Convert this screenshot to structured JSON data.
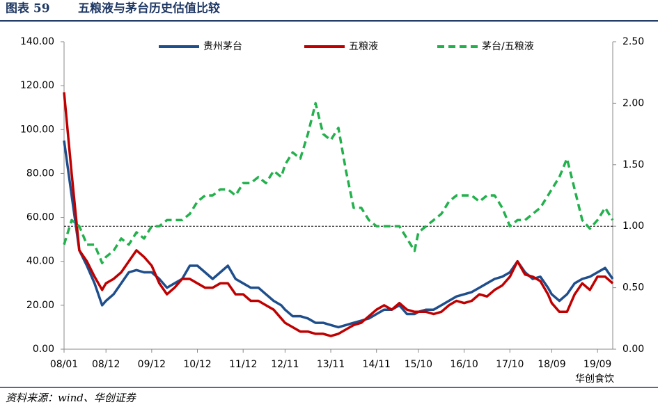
{
  "chart_data": {
    "type": "line",
    "figure_label": "图表 59",
    "title": "五粮液与茅台历史估值比较",
    "source": "资料来源：wind、华创证券",
    "watermark": "华创食饮",
    "x": [
      "08/01",
      "08/03",
      "08/05",
      "08/07",
      "08/09",
      "08/11",
      "08/12",
      "09/02",
      "09/04",
      "09/06",
      "09/08",
      "09/10",
      "09/12",
      "10/02",
      "10/04",
      "10/06",
      "10/08",
      "10/10",
      "10/12",
      "11/02",
      "11/04",
      "11/06",
      "11/08",
      "11/10",
      "11/12",
      "12/02",
      "12/04",
      "12/06",
      "12/08",
      "12/10",
      "12/11",
      "13/01",
      "13/03",
      "13/05",
      "13/07",
      "13/09",
      "13/11",
      "14/01",
      "14/03",
      "14/05",
      "14/07",
      "14/09",
      "14/11",
      "15/01",
      "15/03",
      "15/05",
      "15/07",
      "15/09",
      "15/10",
      "15/12",
      "16/02",
      "16/04",
      "16/06",
      "16/08",
      "16/10",
      "16/12",
      "17/02",
      "17/04",
      "17/06",
      "17/08",
      "17/10",
      "17/12",
      "18/02",
      "18/04",
      "18/06",
      "18/08",
      "18/09",
      "18/11",
      "19/01",
      "19/03",
      "19/05",
      "19/07",
      "19/09",
      "19/11",
      "20/01"
    ],
    "series": [
      {
        "name": "贵州茅台",
        "color": "#1f4e8c",
        "dash": false,
        "values": [
          95,
          70,
          45,
          38,
          30,
          20,
          22,
          25,
          30,
          35,
          36,
          35,
          35,
          32,
          28,
          30,
          32,
          38,
          38,
          35,
          32,
          35,
          38,
          32,
          30,
          28,
          28,
          25,
          22,
          20,
          18,
          15,
          15,
          14,
          12,
          12,
          11,
          10,
          11,
          12,
          13,
          14,
          16,
          18,
          18,
          20,
          16,
          16,
          17,
          18,
          18,
          20,
          22,
          24,
          25,
          26,
          28,
          30,
          32,
          33,
          35,
          40,
          35,
          32,
          33,
          28,
          25,
          22,
          25,
          30,
          32,
          33,
          35,
          37,
          32
        ]
      },
      {
        "name": "五粮液",
        "color": "#c00000",
        "dash": false,
        "values": [
          117,
          80,
          45,
          40,
          33,
          27,
          30,
          32,
          35,
          40,
          45,
          42,
          38,
          30,
          25,
          28,
          32,
          32,
          30,
          28,
          28,
          30,
          30,
          25,
          25,
          22,
          22,
          20,
          18,
          14,
          12,
          10,
          8,
          8,
          7,
          7,
          6,
          7,
          9,
          11,
          12,
          15,
          18,
          20,
          18,
          21,
          18,
          17,
          17,
          17,
          16,
          17,
          20,
          22,
          21,
          22,
          25,
          24,
          27,
          29,
          33,
          40,
          34,
          33,
          31,
          25,
          21,
          17,
          17,
          25,
          30,
          27,
          33,
          33,
          30
        ]
      },
      {
        "name": "茅台/五粮液",
        "color": "#22b14c",
        "dash": true,
        "axis": "y2",
        "values": [
          0.85,
          1.05,
          1.0,
          0.85,
          0.85,
          0.7,
          0.75,
          0.8,
          0.9,
          0.85,
          0.95,
          0.9,
          1.0,
          1.0,
          1.05,
          1.05,
          1.05,
          1.1,
          1.2,
          1.25,
          1.25,
          1.3,
          1.3,
          1.25,
          1.35,
          1.35,
          1.4,
          1.35,
          1.45,
          1.4,
          1.5,
          1.6,
          1.55,
          1.75,
          2.0,
          1.75,
          1.7,
          1.8,
          1.45,
          1.15,
          1.15,
          1.05,
          1.0,
          1.0,
          1.0,
          1.0,
          0.9,
          0.8,
          0.95,
          1.0,
          1.05,
          1.1,
          1.2,
          1.25,
          1.25,
          1.25,
          1.2,
          1.25,
          1.25,
          1.15,
          1.0,
          1.05,
          1.05,
          1.1,
          1.15,
          1.25,
          1.3,
          1.4,
          1.55,
          1.3,
          1.05,
          0.98,
          1.05,
          1.15,
          1.05
        ]
      }
    ],
    "xlim": [
      "08/01",
      "20/01"
    ],
    "xticks": [
      "08/01",
      "08/12",
      "09/12",
      "10/12",
      "11/12",
      "12/11",
      "13/11",
      "14/11",
      "15/10",
      "16/10",
      "17/10",
      "18/09",
      "19/09"
    ],
    "ylim": [
      0,
      140
    ],
    "yticks": [
      {
        "value": 0,
        "label": "0.00"
      },
      {
        "value": 20,
        "label": "20.00"
      },
      {
        "value": 40,
        "label": "40.00"
      },
      {
        "value": 60,
        "label": "60.00"
      },
      {
        "value": 80,
        "label": "80.00"
      },
      {
        "value": 100,
        "label": "100.00"
      },
      {
        "value": 120,
        "label": "120.00"
      },
      {
        "value": 140,
        "label": "140.00"
      }
    ],
    "y2lim": [
      0,
      2.5
    ],
    "y2ticks": [
      {
        "value": 0,
        "label": "0.00"
      },
      {
        "value": 0.5,
        "label": "0.50"
      },
      {
        "value": 1,
        "label": "1.00"
      },
      {
        "value": 1.5,
        "label": "1.50"
      },
      {
        "value": 2,
        "label": "2.00"
      },
      {
        "value": 2.5,
        "label": "2.50"
      }
    ],
    "reference_line": {
      "value": 1,
      "axis": "y2"
    },
    "legend": "top"
  }
}
